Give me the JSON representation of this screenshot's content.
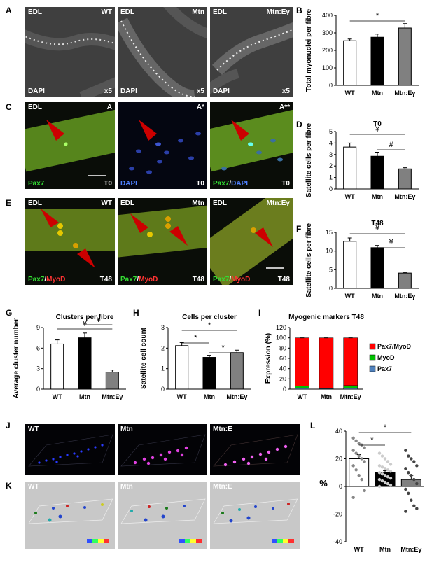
{
  "panel_letters": {
    "A": "A",
    "B": "B",
    "C": "C",
    "D": "D",
    "E": "E",
    "F": "F",
    "G": "G",
    "H": "H",
    "I": "I",
    "J": "J",
    "K": "K",
    "L": "L"
  },
  "panel_a": {
    "images": [
      {
        "tl": "EDL",
        "tr": "WT",
        "bl": "DAPI",
        "br": "x5"
      },
      {
        "tl": "EDL",
        "tr": "Mtn",
        "bl": "DAPI",
        "br": "x5"
      },
      {
        "tl": "EDL",
        "tr": "Mtn:Eγ",
        "bl": "DAPI",
        "br": "x5"
      }
    ]
  },
  "panel_c": {
    "images": [
      {
        "tl": "EDL",
        "tr": "A",
        "bl_1": "Pax7",
        "bl_2": "",
        "bl_3": "",
        "br": "T0"
      },
      {
        "tl": "",
        "tr": "A*",
        "bl_1": "",
        "bl_2": "",
        "bl_3": "DAPI",
        "br": "T0"
      },
      {
        "tl": "",
        "tr": "A**",
        "bl_1": "Pax7",
        "bl_2": "/",
        "bl_3": "DAPI",
        "br": "T0"
      }
    ]
  },
  "panel_e": {
    "images": [
      {
        "tl": "EDL",
        "tr": "WT",
        "a": "Pax7",
        "b": "/",
        "c": "MyoD",
        "br": "T48"
      },
      {
        "tl": "EDL",
        "tr": "Mtn",
        "a": "Pax7",
        "b": "/",
        "c": "MyoD",
        "br": "T48"
      },
      {
        "tl": "EDL",
        "tr": "Mtn:Eγ",
        "a": "Pax7",
        "b": "/",
        "c": "MyoD",
        "br": "T48"
      }
    ]
  },
  "panel_j": {
    "images": [
      {
        "tl": "WT"
      },
      {
        "tl": "Mtn"
      },
      {
        "tl": "Mtn:E"
      }
    ]
  },
  "panel_k": {
    "images": [
      {
        "tl": "WT"
      },
      {
        "tl": "Mtn"
      },
      {
        "tl": "Mtn:E"
      }
    ]
  },
  "colors": {
    "white_bar": "#ffffff",
    "black_bar": "#000000",
    "gray_bar": "#808080",
    "red": "#ff0000",
    "green": "#00c000",
    "blue": "#4f81bd",
    "marker_red": "#dd1111"
  },
  "chart_data": [
    {
      "id": "B",
      "type": "bar",
      "title": "",
      "ylabel": "Total myonuclei per fibre",
      "categories": [
        "WT",
        "Mtn",
        "Mtn:Eγ"
      ],
      "values": [
        255,
        275,
        328
      ],
      "errors": [
        10,
        18,
        25
      ],
      "ylim": [
        0,
        400
      ],
      "yticks": [
        "0",
        "100",
        "200",
        "300",
        "400"
      ],
      "annotations": [
        "*"
      ]
    },
    {
      "id": "D",
      "type": "bar",
      "title": "T0",
      "ylabel": "Satellite cells per fibre",
      "categories": [
        "WT",
        "Mtn",
        "Mtn:Eγ"
      ],
      "values": [
        3.65,
        2.85,
        1.75
      ],
      "errors": [
        0.35,
        0.35,
        0.1
      ],
      "ylim": [
        0,
        5
      ],
      "yticks": [
        "0",
        "1",
        "2",
        "3",
        "4",
        "5"
      ],
      "annotations": [
        "¥",
        "#"
      ]
    },
    {
      "id": "F",
      "type": "bar",
      "title": "T48",
      "ylabel": "Satellite cells per fibre",
      "categories": [
        "WT",
        "Mtn",
        "Mtn:Eγ"
      ],
      "values": [
        12.6,
        10.9,
        4.1
      ],
      "errors": [
        0.9,
        0.6,
        0.2
      ],
      "ylim": [
        0,
        15
      ],
      "yticks": [
        "0",
        "5",
        "10",
        "15"
      ],
      "annotations": [
        "¥",
        "¥"
      ]
    },
    {
      "id": "G",
      "type": "bar",
      "title": "Clusters per fibre",
      "ylabel": "Average cluster number",
      "categories": [
        "WT",
        "Mtn",
        "Mtn:Eγ"
      ],
      "values": [
        6.6,
        7.5,
        2.5
      ],
      "errors": [
        0.6,
        0.7,
        0.3
      ],
      "ylim": [
        0,
        9
      ],
      "yticks": [
        "0",
        "3",
        "6",
        "9"
      ],
      "annotations": [
        "¥",
        "¥"
      ]
    },
    {
      "id": "H",
      "type": "bar",
      "title": "Cells per cluster",
      "ylabel": "Satellite cell count",
      "categories": [
        "WT",
        "Mtn",
        "Mtn:Eγ"
      ],
      "values": [
        2.12,
        1.55,
        1.78
      ],
      "errors": [
        0.15,
        0.1,
        0.12
      ],
      "ylim": [
        0,
        3
      ],
      "yticks": [
        "0",
        "1",
        "2",
        "3"
      ],
      "annotations": [
        "*",
        "*",
        "*"
      ]
    },
    {
      "id": "I",
      "type": "bar",
      "stacked": true,
      "title": "Myogenic markers T48",
      "ylabel": "Expression (%)",
      "categories": [
        "WT",
        "Mtn",
        "Mtn:Eγ"
      ],
      "series": [
        {
          "name": "Pax7",
          "values": [
            2,
            1,
            2
          ]
        },
        {
          "name": "MyoD",
          "values": [
            4,
            1,
            5
          ]
        },
        {
          "name": "Pax7/MyoD",
          "values": [
            94,
            98,
            93
          ]
        }
      ],
      "ylim": [
        0,
        120
      ],
      "yticks": [
        "0",
        "20",
        "40",
        "60",
        "80",
        "100",
        "120"
      ],
      "legend": "right"
    },
    {
      "id": "L",
      "type": "bar",
      "title": "",
      "ylabel": "%",
      "categories": [
        "WT",
        "Mtn",
        "Mtn:Eγ"
      ],
      "values": [
        20,
        10,
        5
      ],
      "errors": [
        3,
        1.5,
        3
      ],
      "points": [
        [
          35,
          33,
          31,
          30,
          28,
          26,
          24,
          22,
          20,
          18,
          15,
          12,
          8,
          5,
          -3,
          -8
        ],
        [
          24,
          22,
          20,
          18,
          16,
          15,
          14,
          13,
          12,
          11,
          10,
          9,
          8,
          7,
          6,
          5,
          4,
          3,
          2,
          1,
          0
        ],
        [
          26,
          22,
          20,
          18,
          15,
          13,
          10,
          8,
          5,
          2,
          -2,
          -5,
          -10,
          -14,
          -16,
          -18
        ]
      ],
      "ylim": [
        -40,
        40
      ],
      "yticks": [
        "-40",
        "-20",
        "0",
        "20",
        "40"
      ],
      "annotations": [
        "*",
        "*"
      ]
    }
  ]
}
